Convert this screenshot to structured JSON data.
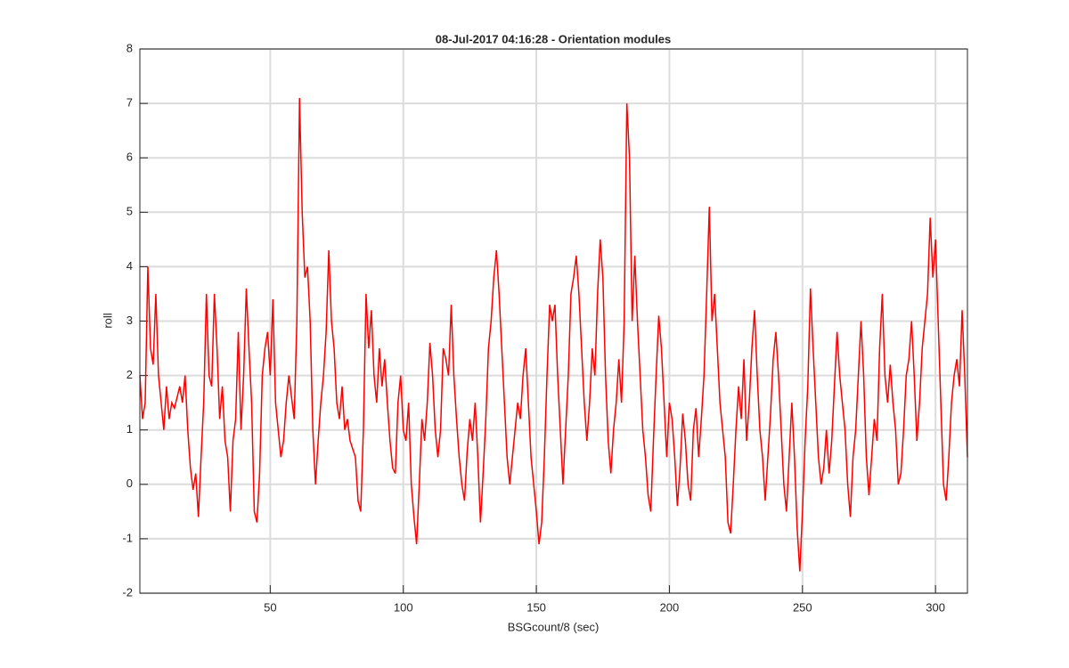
{
  "chart_data": {
    "type": "line",
    "title": "08-Jul-2017 04:16:28 - Orientation modules",
    "x_label": "BSGcount/8 (sec)",
    "y_label": "roll",
    "xlim": [
      1,
      312
    ],
    "ylim": [
      -2,
      8
    ],
    "xticks": [
      50,
      100,
      150,
      200,
      250,
      300
    ],
    "yticks": [
      -2,
      -1,
      0,
      1,
      2,
      3,
      4,
      5,
      6,
      7,
      8
    ],
    "grid": true,
    "series": [
      {
        "name": "roll",
        "color": "#ff0000",
        "x": [
          1,
          2,
          3,
          4,
          5,
          6,
          7,
          8,
          9,
          10,
          11,
          12,
          13,
          14,
          16,
          17,
          18,
          19,
          20,
          21,
          22,
          23,
          24,
          25,
          26,
          27,
          28,
          29,
          30,
          31,
          32,
          33,
          34,
          35,
          36,
          37,
          38,
          39,
          40,
          41,
          42,
          43,
          44,
          45,
          46,
          47,
          48,
          49,
          50,
          51,
          52,
          53,
          54,
          55,
          56,
          57,
          58,
          59,
          60,
          61,
          62,
          63,
          64,
          65,
          66,
          67,
          68,
          69,
          70,
          71,
          72,
          73,
          74,
          75,
          76,
          77,
          78,
          79,
          80,
          82,
          83,
          84,
          85,
          86,
          87,
          88,
          89,
          90,
          91,
          92,
          93,
          94,
          95,
          96,
          97,
          98,
          99,
          100,
          101,
          102,
          103,
          104,
          105,
          106,
          107,
          108,
          109,
          110,
          111,
          112,
          113,
          114,
          115,
          116,
          117,
          118,
          119,
          120,
          121,
          122,
          123,
          124,
          125,
          126,
          127,
          128,
          129,
          130,
          131,
          132,
          133,
          134,
          135,
          136,
          137,
          138,
          139,
          140,
          141,
          142,
          143,
          144,
          145,
          146,
          147,
          148,
          149,
          150,
          151,
          152,
          153,
          154,
          155,
          156,
          157,
          158,
          159,
          160,
          161,
          162,
          163,
          164,
          165,
          166,
          167,
          168,
          169,
          170,
          171,
          172,
          173,
          174,
          175,
          176,
          177,
          178,
          179,
          180,
          181,
          182,
          183,
          184,
          185,
          186,
          187,
          188,
          189,
          190,
          191,
          192,
          193,
          194,
          195,
          196,
          197,
          198,
          199,
          200,
          201,
          202,
          203,
          204,
          205,
          206,
          207,
          208,
          209,
          210,
          211,
          212,
          213,
          214,
          215,
          216,
          217,
          218,
          219,
          220,
          221,
          222,
          223,
          224,
          225,
          226,
          227,
          228,
          229,
          230,
          231,
          232,
          233,
          234,
          235,
          236,
          237,
          238,
          239,
          240,
          241,
          242,
          243,
          244,
          245,
          246,
          247,
          248,
          249,
          250,
          251,
          252,
          253,
          254,
          255,
          256,
          257,
          258,
          259,
          260,
          261,
          262,
          263,
          264,
          265,
          266,
          267,
          268,
          269,
          270,
          271,
          272,
          273,
          274,
          275,
          276,
          277,
          278,
          279,
          280,
          281,
          282,
          283,
          284,
          285,
          286,
          287,
          288,
          289,
          290,
          291,
          292,
          293,
          294,
          295,
          296,
          297,
          298,
          299,
          300,
          301,
          302,
          303,
          304,
          305,
          306,
          307,
          308,
          309,
          310,
          311,
          312
        ],
        "values": [
          2.0,
          1.2,
          1.5,
          4.0,
          2.5,
          2.2,
          3.5,
          2.0,
          1.5,
          1.0,
          1.8,
          1.2,
          1.5,
          1.4,
          1.8,
          1.5,
          2.0,
          1.0,
          0.3,
          -0.1,
          0.2,
          -0.6,
          0.5,
          1.5,
          3.5,
          2.0,
          1.8,
          3.5,
          2.5,
          1.2,
          1.8,
          0.8,
          0.5,
          -0.5,
          0.8,
          1.2,
          2.8,
          1.0,
          2.0,
          3.6,
          2.5,
          1.5,
          -0.5,
          -0.7,
          0.2,
          2.0,
          2.5,
          2.8,
          2.0,
          3.4,
          1.5,
          1.0,
          0.5,
          0.8,
          1.5,
          2.0,
          1.6,
          1.2,
          3.0,
          7.1,
          5.0,
          3.8,
          4.0,
          3.0,
          1.0,
          0.0,
          0.8,
          1.5,
          2.0,
          2.8,
          4.3,
          3.0,
          2.5,
          1.5,
          1.2,
          1.8,
          1.0,
          1.2,
          0.8,
          0.5,
          -0.3,
          -0.5,
          1.0,
          3.5,
          2.5,
          3.2,
          2.0,
          1.5,
          2.5,
          1.8,
          2.3,
          1.5,
          0.8,
          0.3,
          0.2,
          1.5,
          2.0,
          1.0,
          0.8,
          1.5,
          0.0,
          -0.6,
          -1.1,
          0.0,
          1.2,
          0.8,
          1.5,
          2.6,
          2.0,
          1.0,
          0.5,
          1.0,
          2.5,
          2.3,
          2.0,
          3.3,
          2.0,
          1.2,
          0.5,
          0.0,
          -0.3,
          0.6,
          1.2,
          0.8,
          1.5,
          0.5,
          -0.7,
          0.2,
          1.2,
          2.5,
          3.0,
          3.8,
          4.3,
          3.5,
          2.5,
          1.5,
          0.5,
          0.0,
          0.5,
          1.0,
          1.5,
          1.2,
          2.0,
          2.5,
          1.5,
          0.5,
          0.0,
          -0.5,
          -1.1,
          -0.7,
          0.5,
          2.0,
          3.3,
          3.0,
          3.3,
          2.0,
          1.0,
          0.0,
          1.0,
          2.0,
          3.5,
          3.8,
          4.2,
          3.5,
          2.5,
          1.5,
          0.8,
          1.5,
          2.5,
          2.0,
          3.5,
          4.5,
          3.8,
          2.0,
          0.8,
          0.2,
          1.0,
          1.5,
          2.3,
          1.5,
          3.0,
          7.0,
          6.0,
          3.0,
          4.2,
          3.0,
          2.0,
          1.0,
          0.5,
          -0.2,
          -0.5,
          0.8,
          2.0,
          3.1,
          2.5,
          1.5,
          0.5,
          1.5,
          1.2,
          0.5,
          -0.4,
          0.3,
          1.3,
          0.8,
          0.0,
          -0.3,
          1.0,
          1.4,
          0.5,
          1.2,
          2.0,
          3.5,
          5.1,
          3.0,
          3.5,
          2.5,
          1.5,
          1.0,
          0.5,
          -0.7,
          -0.9,
          0.0,
          1.0,
          1.8,
          1.2,
          2.3,
          0.8,
          1.5,
          2.5,
          3.2,
          2.0,
          1.0,
          0.5,
          -0.3,
          0.5,
          1.3,
          2.3,
          2.8,
          2.0,
          1.0,
          0.0,
          -0.5,
          0.5,
          1.5,
          0.5,
          -0.8,
          -1.6,
          -0.5,
          0.8,
          1.8,
          3.6,
          2.5,
          1.5,
          0.5,
          0.0,
          0.3,
          1.0,
          0.2,
          0.8,
          1.8,
          2.8,
          2.0,
          1.5,
          1.0,
          0.0,
          -0.6,
          0.5,
          1.0,
          2.0,
          3.0,
          2.0,
          0.5,
          -0.2,
          0.5,
          1.2,
          0.8,
          2.5,
          3.5,
          2.0,
          1.5,
          2.2,
          1.5,
          1.0,
          0.0,
          0.2,
          1.0,
          2.0,
          2.3,
          3.0,
          2.0,
          0.8,
          1.5,
          2.5,
          3.0,
          3.5,
          4.9,
          3.8,
          4.5,
          3.0,
          1.5,
          0.0,
          -0.3,
          0.5,
          1.5,
          2.0,
          2.3,
          1.8,
          3.2,
          2.0,
          0.5
        ]
      }
    ]
  }
}
